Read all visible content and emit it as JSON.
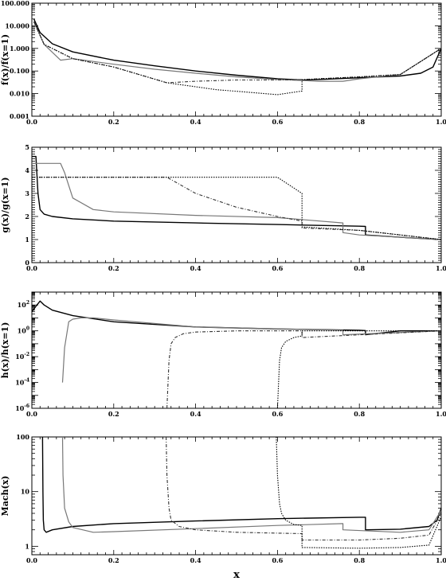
{
  "chart_data": [
    {
      "type": "line",
      "ylabel": "f(x)/f(x=1)",
      "yscale": "log",
      "xlim": [
        0,
        1
      ],
      "ylim": [
        0.001,
        100
      ],
      "xticks": [
        "0.0",
        "0.2",
        "0.4",
        "0.6",
        "0.8",
        "1.0"
      ],
      "yticks": [
        "0.001",
        "0.010",
        "0.100",
        "1.000",
        "10.000",
        "100.000"
      ],
      "series": [
        {
          "style": "solid-black",
          "x": [
            0.005,
            0.02,
            0.05,
            0.1,
            0.2,
            0.3,
            0.4,
            0.5,
            0.6,
            0.66,
            0.7,
            0.8,
            0.9,
            0.95,
            0.98,
            1.0
          ],
          "y": [
            20,
            5,
            1.6,
            0.7,
            0.3,
            0.17,
            0.1,
            0.065,
            0.045,
            0.04,
            0.042,
            0.05,
            0.06,
            0.08,
            0.15,
            1
          ]
        },
        {
          "style": "solid-gray",
          "x": [
            0.005,
            0.03,
            0.07,
            0.1,
            0.2,
            0.3,
            0.4,
            0.5,
            0.6,
            0.66,
            0.7,
            0.76,
            0.8,
            0.9,
            1.0
          ],
          "y": [
            15,
            1.5,
            0.3,
            0.35,
            0.2,
            0.12,
            0.08,
            0.055,
            0.042,
            0.038,
            0.035,
            0.035,
            0.045,
            0.07,
            1
          ]
        },
        {
          "style": "dash-dot",
          "x": [
            0.005,
            0.03,
            0.1,
            0.2,
            0.33,
            0.4,
            0.5,
            0.6,
            0.66,
            0.7,
            0.8,
            0.9,
            1.0
          ],
          "y": [
            15,
            1.5,
            0.35,
            0.15,
            0.03,
            0.035,
            0.04,
            0.04,
            0.042,
            0.045,
            0.055,
            0.07,
            1
          ]
        },
        {
          "style": "dotted",
          "x": [
            0.005,
            0.03,
            0.1,
            0.2,
            0.33,
            0.45,
            0.6,
            0.66,
            0.66,
            0.7,
            0.8,
            0.9,
            1.0
          ],
          "y": [
            15,
            1.5,
            0.35,
            0.15,
            0.03,
            0.015,
            0.009,
            0.013,
            0.04,
            0.045,
            0.055,
            0.07,
            1
          ]
        }
      ]
    },
    {
      "type": "line",
      "ylabel": "g(x)/g(x=1)",
      "xlim": [
        0,
        1
      ],
      "ylim": [
        0,
        5
      ],
      "xticks": [
        "0.0",
        "0.2",
        "0.4",
        "0.6",
        "0.8",
        "1.0"
      ],
      "yticks": [
        "0",
        "1",
        "2",
        "3",
        "4",
        "5"
      ],
      "series": [
        {
          "style": "solid-black",
          "x": [
            0.0,
            0.01,
            0.015,
            0.02,
            0.03,
            0.05,
            0.1,
            0.2,
            0.4,
            0.6,
            0.8,
            0.815,
            0.815,
            0.9,
            1.0
          ],
          "y": [
            4.6,
            4.6,
            3.0,
            2.3,
            2.1,
            2.0,
            1.9,
            1.8,
            1.72,
            1.65,
            1.58,
            1.57,
            1.2,
            1.1,
            1.0
          ]
        },
        {
          "style": "solid-gray",
          "x": [
            0.0,
            0.07,
            0.08,
            0.1,
            0.15,
            0.2,
            0.4,
            0.6,
            0.76,
            0.76,
            0.8,
            1.0
          ],
          "y": [
            4.3,
            4.3,
            3.9,
            2.8,
            2.3,
            2.2,
            2.05,
            1.95,
            1.72,
            1.3,
            1.2,
            1.0
          ]
        },
        {
          "style": "dash-dot",
          "x": [
            0.0,
            0.33,
            0.4,
            0.5,
            0.6,
            0.66,
            0.66,
            0.8,
            1.0
          ],
          "y": [
            3.7,
            3.7,
            3.0,
            2.4,
            2.0,
            1.8,
            1.5,
            1.4,
            1.0
          ]
        },
        {
          "style": "dotted",
          "x": [
            0.0,
            0.6,
            0.66,
            0.66,
            0.8,
            1.0
          ],
          "y": [
            3.7,
            3.7,
            3.0,
            1.55,
            1.4,
            1.0
          ]
        }
      ]
    },
    {
      "type": "line",
      "ylabel": "h(x)/h(x=1)",
      "yscale": "log",
      "xlim": [
        0,
        1
      ],
      "ylim": [
        1e-06,
        1000
      ],
      "xticks": [
        "0.0",
        "0.2",
        "0.4",
        "0.6",
        "0.8",
        "1.0"
      ],
      "yticks": [
        "10^-6",
        "10^-4",
        "10^-2",
        "10^0",
        "10^2"
      ],
      "series": [
        {
          "style": "solid-black",
          "x": [
            0.0,
            0.01,
            0.02,
            0.03,
            0.05,
            0.1,
            0.2,
            0.4,
            0.6,
            0.8,
            0.815,
            0.815,
            0.9,
            1.0
          ],
          "y": [
            30,
            80,
            200,
            100,
            40,
            15,
            5,
            2,
            1.4,
            1.1,
            1.05,
            0.5,
            1,
            1
          ]
        },
        {
          "style": "solid-gray",
          "x": [
            0.075,
            0.08,
            0.09,
            0.1,
            0.12,
            0.15,
            0.2,
            0.4,
            0.76,
            0.76,
            1.0
          ],
          "y": [
            0.0001,
            0.05,
            5,
            8,
            10,
            10,
            7,
            2,
            1.1,
            0.5,
            1
          ]
        },
        {
          "style": "dash-dot",
          "x": [
            0.33,
            0.335,
            0.34,
            0.35,
            0.37,
            0.4,
            0.5,
            0.66,
            0.66,
            1.0
          ],
          "y": [
            1e-06,
            0.005,
            0.1,
            0.3,
            0.6,
            0.8,
            1,
            1,
            0.3,
            1
          ]
        },
        {
          "style": "dotted",
          "x": [
            0.6,
            0.605,
            0.61,
            0.62,
            0.64,
            0.66,
            0.66,
            1.0
          ],
          "y": [
            1e-06,
            0.005,
            0.05,
            0.15,
            0.3,
            0.4,
            1,
            1
          ]
        }
      ]
    },
    {
      "type": "line",
      "ylabel": "Mach(x)",
      "xlabel": "x",
      "yscale": "log",
      "xlim": [
        0,
        1
      ],
      "ylim": [
        0.7,
        100
      ],
      "xticks": [
        "0.0",
        "0.2",
        "0.4",
        "0.6",
        "0.8",
        "1.0"
      ],
      "yticks": [
        "1",
        "10",
        "100"
      ],
      "series": [
        {
          "style": "solid-black",
          "x": [
            0.026,
            0.027,
            0.028,
            0.03,
            0.035,
            0.05,
            0.1,
            0.2,
            0.4,
            0.6,
            0.8,
            0.815,
            0.815,
            0.9,
            0.97,
            0.99,
            1.0
          ],
          "y": [
            100,
            10,
            3,
            2,
            1.8,
            2.0,
            2.3,
            2.6,
            2.9,
            3.2,
            3.4,
            3.4,
            2.0,
            2.05,
            2.3,
            3.0,
            5.0
          ]
        },
        {
          "style": "solid-gray",
          "x": [
            0.075,
            0.076,
            0.08,
            0.09,
            0.1,
            0.15,
            0.2,
            0.4,
            0.6,
            0.76,
            0.76,
            0.9,
            0.97,
            1.0
          ],
          "y": [
            100,
            20,
            5,
            2.8,
            2.2,
            1.8,
            1.85,
            2.1,
            2.4,
            2.6,
            2.0,
            1.8,
            2.0,
            4.5
          ]
        },
        {
          "style": "dash-dot",
          "x": [
            0.328,
            0.33,
            0.335,
            0.34,
            0.36,
            0.4,
            0.5,
            0.66,
            0.66,
            0.8,
            0.9,
            0.97,
            1.0
          ],
          "y": [
            100,
            20,
            5,
            3,
            2.3,
            2.0,
            1.8,
            1.7,
            1.3,
            1.3,
            1.4,
            1.6,
            4.0
          ]
        },
        {
          "style": "dotted",
          "x": [
            0.597,
            0.6,
            0.605,
            0.61,
            0.62,
            0.64,
            0.66,
            0.66,
            0.8,
            0.9,
            0.97,
            1.0
          ],
          "y": [
            100,
            20,
            6,
            4,
            3,
            2.5,
            2.4,
            0.95,
            0.92,
            0.95,
            1.05,
            3.5
          ]
        }
      ]
    }
  ]
}
